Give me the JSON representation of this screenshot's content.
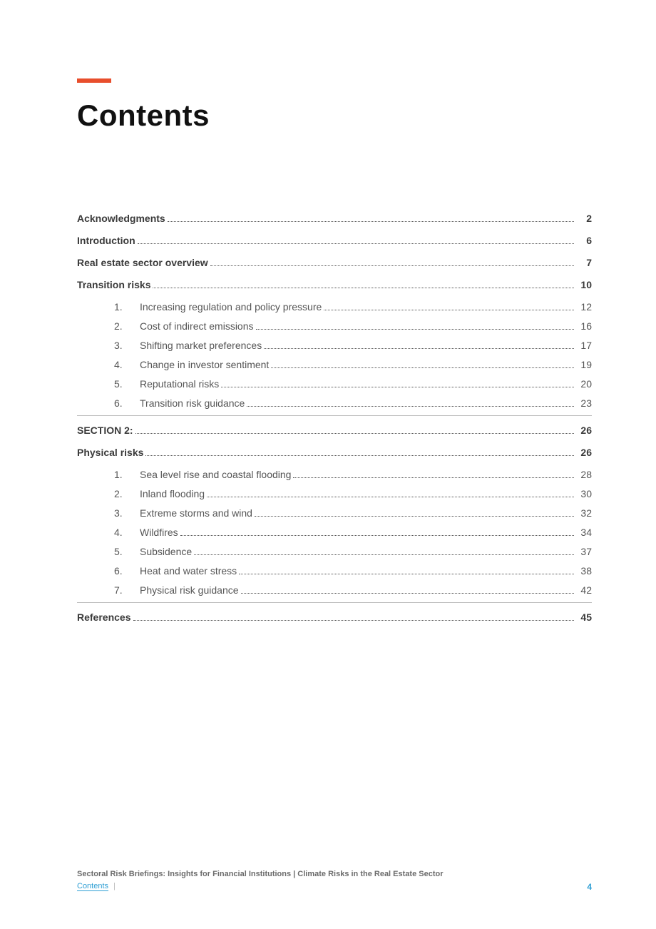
{
  "accent_color": "#e84e2c",
  "heading": "Contents",
  "toc": [
    {
      "level": 0,
      "label": "Acknowledgments",
      "page": "2"
    },
    {
      "level": 0,
      "label": "Introduction",
      "page": "6"
    },
    {
      "level": 0,
      "label": "Real estate sector overview",
      "page": "7"
    },
    {
      "level": 0,
      "label": "Transition risks",
      "page": "10"
    },
    {
      "level": 1,
      "num": "1.",
      "label": "Increasing regulation and policy pressure",
      "page": "12"
    },
    {
      "level": 1,
      "num": "2.",
      "label": "Cost of indirect emissions",
      "page": "16"
    },
    {
      "level": 1,
      "num": "3.",
      "label": "Shifting market preferences",
      "page": "17"
    },
    {
      "level": 1,
      "num": "4.",
      "label": "Change in investor sentiment",
      "page": "19"
    },
    {
      "level": 1,
      "num": "5.",
      "label": "Reputational risks",
      "page": "20"
    },
    {
      "level": 1,
      "num": "6.",
      "label": "Transition risk guidance",
      "page": "23"
    },
    {
      "divider": true
    },
    {
      "level": 0,
      "label": "SECTION 2: ",
      "page": "26"
    },
    {
      "level": 0,
      "label": "Physical risks",
      "page": "26"
    },
    {
      "level": 1,
      "num": "1.",
      "label": "Sea level rise and coastal flooding",
      "page": "28"
    },
    {
      "level": 1,
      "num": "2.",
      "label": "Inland flooding",
      "page": "30"
    },
    {
      "level": 1,
      "num": "3.",
      "label": "Extreme storms and wind",
      "page": "32"
    },
    {
      "level": 1,
      "num": "4.",
      "label": "Wildfires",
      "page": "34"
    },
    {
      "level": 1,
      "num": "5.",
      "label": "Subsidence",
      "page": "37"
    },
    {
      "level": 1,
      "num": "6.",
      "label": "Heat and water stress",
      "page": "38"
    },
    {
      "level": 1,
      "num": "7.",
      "label": "Physical risk guidance",
      "page": "42"
    },
    {
      "divider": true
    },
    {
      "level": 0,
      "label": "References",
      "page": "45"
    }
  ],
  "footer": {
    "title": "Sectoral Risk Briefings: Insights for Financial Institutions | Climate Risks in the Real Estate Sector",
    "breadcrumb": "Contents",
    "separator": " | ",
    "page_number_color": "#2f9fd4",
    "page_number": "4"
  }
}
